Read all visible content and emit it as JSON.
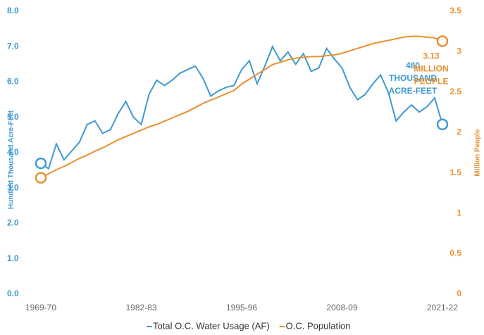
{
  "chart_data": {
    "type": "line",
    "categories": [
      "1969-70",
      null,
      null,
      null,
      null,
      null,
      null,
      null,
      null,
      null,
      null,
      null,
      null,
      "1982-83",
      null,
      null,
      null,
      null,
      null,
      null,
      null,
      null,
      null,
      null,
      null,
      null,
      "1995-96",
      null,
      null,
      null,
      null,
      null,
      null,
      null,
      null,
      null,
      null,
      null,
      null,
      "2008-09",
      null,
      null,
      null,
      null,
      null,
      null,
      null,
      null,
      null,
      null,
      null,
      null,
      "2021-22"
    ],
    "series": [
      {
        "name": "Total O.C. Water Usage (AF)",
        "color": "#3d9ad1",
        "axis": "y",
        "values": [
          3.7,
          3.55,
          4.25,
          3.8,
          4.05,
          4.3,
          4.8,
          4.9,
          4.55,
          4.65,
          5.1,
          5.45,
          5.0,
          4.8,
          5.65,
          6.05,
          5.9,
          6.05,
          6.25,
          6.35,
          6.45,
          6.1,
          5.6,
          5.75,
          5.85,
          5.9,
          6.35,
          6.6,
          5.95,
          6.45,
          7.0,
          6.6,
          6.85,
          6.5,
          6.8,
          6.3,
          6.4,
          6.95,
          6.65,
          6.4,
          5.85,
          5.5,
          5.65,
          5.95,
          6.2,
          5.7,
          4.9,
          5.15,
          5.35,
          5.15,
          5.3,
          5.55,
          4.8
        ]
      },
      {
        "name": "O.C. Population",
        "color": "#e8902e",
        "axis": "y2",
        "values": [
          1.44,
          1.49,
          1.54,
          1.58,
          1.63,
          1.68,
          1.72,
          1.77,
          1.81,
          1.86,
          1.91,
          1.95,
          1.99,
          2.03,
          2.07,
          2.1,
          2.14,
          2.18,
          2.22,
          2.26,
          2.31,
          2.36,
          2.4,
          2.44,
          2.48,
          2.52,
          2.6,
          2.66,
          2.72,
          2.78,
          2.84,
          2.87,
          2.9,
          2.92,
          2.93,
          2.94,
          2.94,
          2.95,
          2.96,
          2.98,
          3.01,
          3.04,
          3.07,
          3.1,
          3.12,
          3.14,
          3.16,
          3.18,
          3.19,
          3.19,
          3.18,
          3.17,
          3.13
        ]
      }
    ],
    "ylabel": "Hundred Thousand Acre-Feet",
    "y2label": "Million People",
    "ylim": [
      0,
      8
    ],
    "yticks": [
      {
        "value": 0,
        "label": "0.0"
      },
      {
        "value": 1,
        "label": "1.0"
      },
      {
        "value": 2,
        "label": "2.0"
      },
      {
        "value": 3,
        "label": "3.0"
      },
      {
        "value": 4,
        "label": "4.0"
      },
      {
        "value": 5,
        "label": "5.0"
      },
      {
        "value": 6,
        "label": "6.0"
      },
      {
        "value": 7,
        "label": "7.0"
      },
      {
        "value": 8,
        "label": "8.0"
      }
    ],
    "y2lim": [
      0,
      3.5
    ],
    "y2ticks": [
      0,
      0.5,
      1,
      1.5,
      2,
      2.5,
      3,
      3.5
    ],
    "annotations": [
      {
        "lines": [
          "480",
          "THOUSAND",
          "ACRE-FEET"
        ],
        "series": 0
      },
      {
        "lines": [
          "3.13",
          "MILLION",
          "PEOPLE"
        ],
        "series": 1
      }
    ],
    "grid": false,
    "legend": "bottom"
  }
}
